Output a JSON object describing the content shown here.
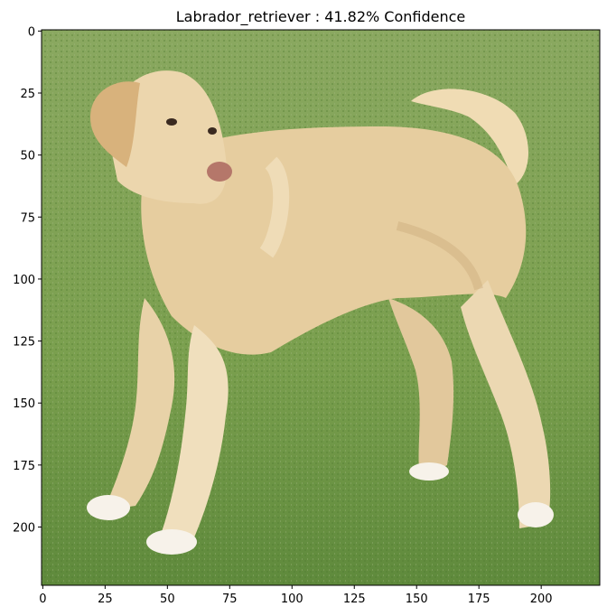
{
  "title": "Labrador_retriever : 41.82% Confidence",
  "image": {
    "subject": "dog",
    "colors": {
      "grass": "#7fa055",
      "grass_dark": "#5d8a3a",
      "fur": "#e8cfa0",
      "fur_light": "#f4e4c4",
      "fur_shadow": "#c9a878",
      "nose": "#b07060"
    }
  },
  "axes": {
    "x_ticks": [
      "0",
      "25",
      "50",
      "75",
      "100",
      "125",
      "150",
      "175",
      "200"
    ],
    "y_ticks": [
      "0",
      "25",
      "50",
      "75",
      "100",
      "125",
      "150",
      "175",
      "200"
    ],
    "x_range": [
      -0.5,
      223.5
    ],
    "y_range": [
      223.5,
      -0.5
    ]
  }
}
